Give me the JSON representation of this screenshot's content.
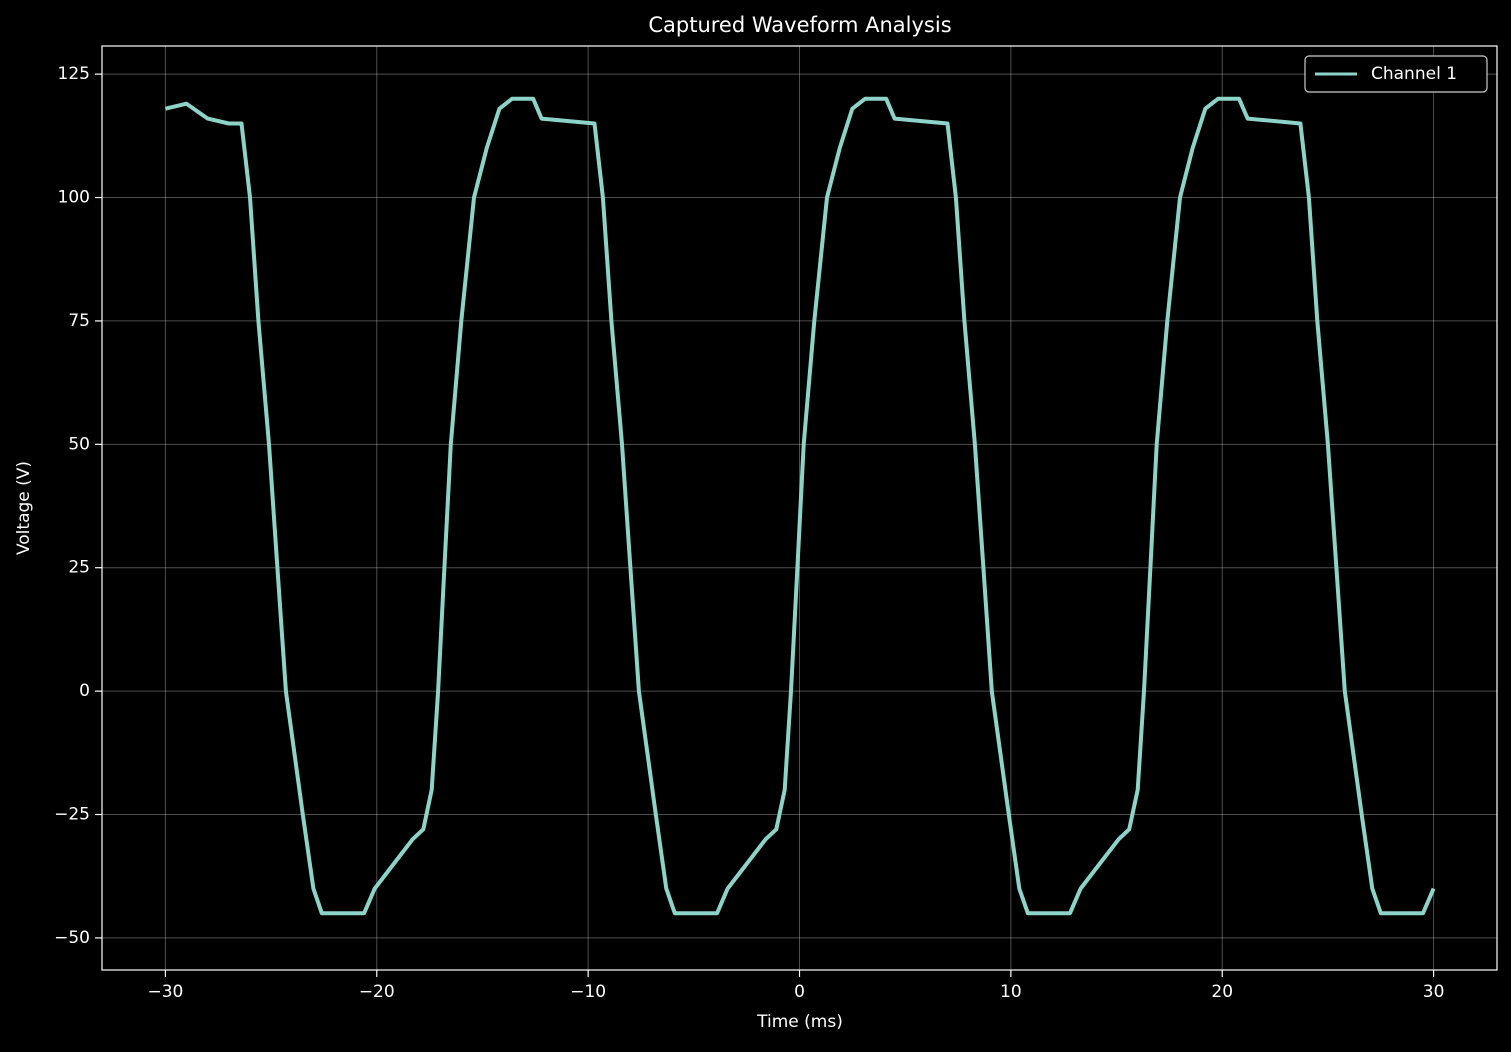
{
  "chart_data": {
    "type": "line",
    "title": "Captured Waveform Analysis",
    "x_label": "Time (ms)",
    "y_label": "Voltage (V)",
    "xlim": [
      -33,
      33
    ],
    "ylim": [
      -56.5,
      130.7
    ],
    "xticks": [
      {
        "value": -30,
        "label": "−30"
      },
      {
        "value": -20,
        "label": "−20"
      },
      {
        "value": -10,
        "label": "−10"
      },
      0,
      10,
      20,
      30
    ],
    "yticks": [
      {
        "value": -50,
        "label": "−50"
      },
      {
        "value": -25,
        "label": "−25"
      },
      0,
      25,
      50,
      75,
      100,
      125
    ],
    "grid": true,
    "legend": "upper right",
    "x": [
      -30,
      -29,
      -28,
      -27,
      -26.4,
      -26.0,
      -25.6,
      -25.1,
      -24.7,
      -24.3,
      -23.5,
      -23.0,
      -22.6,
      -20.6,
      -20.1,
      -19.2,
      -18.3,
      -17.8,
      -17.4,
      -17.1,
      -16.8,
      -16.5,
      -16.0,
      -15.4,
      -14.8,
      -14.2,
      -13.6,
      -12.6,
      -12.2,
      -9.7,
      -9.3,
      -8.9,
      -8.4,
      -8.0,
      -7.6,
      -6.8,
      -6.3,
      -5.9,
      -3.9,
      -3.4,
      -2.5,
      -1.6,
      -1.1,
      -0.7,
      -0.4,
      -0.1,
      0.2,
      0.7,
      1.3,
      1.9,
      2.5,
      3.1,
      4.1,
      4.5,
      7.0,
      7.4,
      7.8,
      8.3,
      8.7,
      9.1,
      9.9,
      10.4,
      10.8,
      12.8,
      13.3,
      14.2,
      15.1,
      15.6,
      16.0,
      16.3,
      16.6,
      16.9,
      17.4,
      18.0,
      18.6,
      19.2,
      19.8,
      20.8,
      21.2,
      23.7,
      24.1,
      24.5,
      25.0,
      25.4,
      25.8,
      26.6,
      27.1,
      27.5,
      29.5,
      30.0
    ],
    "series": [
      {
        "name": "Channel 1",
        "color": "#8dd3c7",
        "values": [
          118,
          119,
          116,
          115,
          115,
          100,
          75,
          50,
          25,
          0,
          -25,
          -40,
          -45,
          -45,
          -40,
          -35,
          -30,
          -28,
          -20,
          0,
          25,
          50,
          75,
          100,
          110,
          118,
          120,
          120,
          116,
          115,
          100,
          75,
          50,
          25,
          0,
          -25,
          -40,
          -45,
          -45,
          -40,
          -35,
          -30,
          -28,
          -20,
          0,
          25,
          50,
          75,
          100,
          110,
          118,
          120,
          120,
          116,
          115,
          100,
          75,
          50,
          25,
          0,
          -25,
          -40,
          -45,
          -45,
          -40,
          -35,
          -30,
          -28,
          -20,
          0,
          25,
          50,
          75,
          100,
          110,
          118,
          120,
          120,
          116,
          115,
          100,
          75,
          50,
          25,
          0,
          -25,
          -40,
          -45,
          -45,
          -40
        ]
      }
    ]
  }
}
